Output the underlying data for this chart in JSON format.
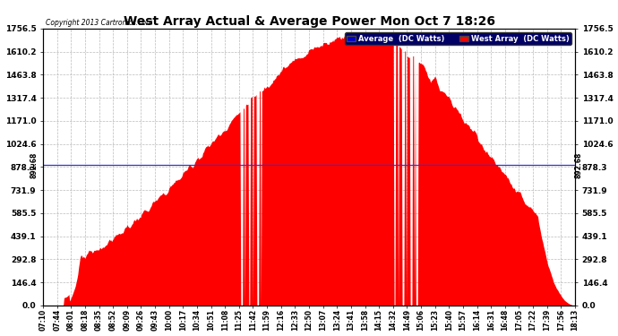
{
  "title": "West Array Actual & Average Power Mon Oct 7 18:26",
  "copyright": "Copyright 2013 Cartronics.com",
  "avg_line_value": 892.68,
  "avg_line_label": "892.68",
  "ymax": 1756.5,
  "ymin": 0.0,
  "yticks": [
    0.0,
    146.4,
    292.8,
    439.1,
    585.5,
    731.9,
    878.3,
    1024.6,
    1171.0,
    1317.4,
    1463.8,
    1610.2,
    1756.5
  ],
  "xtick_labels": [
    "07:10",
    "07:44",
    "08:01",
    "08:18",
    "08:35",
    "08:52",
    "09:09",
    "09:26",
    "09:43",
    "10:00",
    "10:17",
    "10:34",
    "10:51",
    "11:08",
    "11:25",
    "11:42",
    "11:59",
    "12:16",
    "12:33",
    "12:50",
    "13:07",
    "13:24",
    "13:41",
    "13:58",
    "14:15",
    "14:32",
    "14:49",
    "15:06",
    "15:23",
    "15:40",
    "15:57",
    "16:14",
    "16:31",
    "16:48",
    "17:05",
    "17:22",
    "17:39",
    "17:56",
    "18:13"
  ],
  "fill_color": "#FF0000",
  "line_color": "#FF0000",
  "avg_line_color": "#3333CC",
  "plot_bg_color": "#FFFFFF",
  "grid_color": "#AAAAAA",
  "legend_avg_color": "#0000CC",
  "legend_west_color": "#FF0000",
  "legend_avg_label": "Average  (DC Watts)",
  "legend_west_label": "West Array  (DC Watts)",
  "legend_bg": "#000066"
}
